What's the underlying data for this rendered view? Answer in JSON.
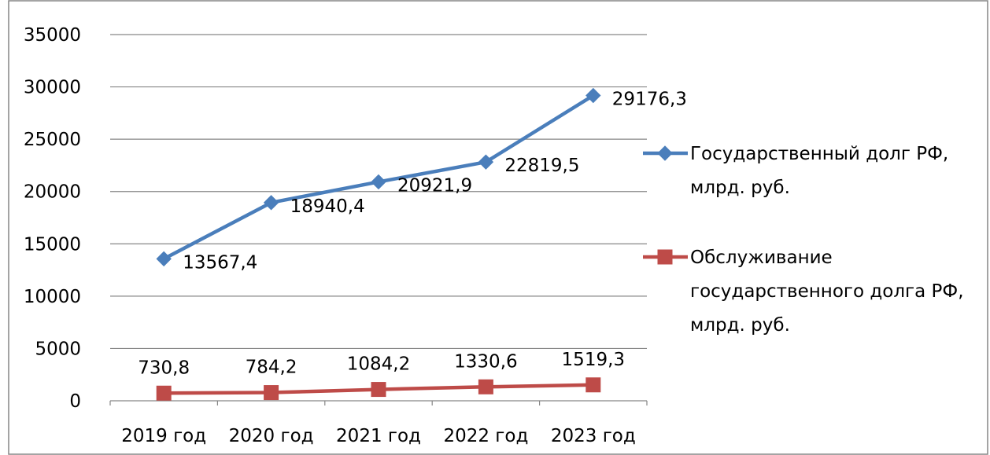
{
  "chart_data": {
    "type": "line",
    "title": "",
    "xlabel": "",
    "ylabel": "",
    "categories": [
      "2019 год",
      "2020 год",
      "2021 год",
      "2022 год",
      "2023 год"
    ],
    "ylim": [
      0,
      35000
    ],
    "yticks": [
      0,
      5000,
      10000,
      15000,
      20000,
      25000,
      30000,
      35000
    ],
    "ytick_labels": [
      "0",
      "5000",
      "10000",
      "15000",
      "20000",
      "25000",
      "30000",
      "35000"
    ],
    "grid": true,
    "legend_position": "right",
    "series": [
      {
        "name": "Государственный долг РФ, млрд. руб.",
        "name_lines": [
          "Государственный долг РФ,",
          "млрд. руб."
        ],
        "marker": "diamond",
        "color": "#4a7ebb",
        "values": [
          13567.4,
          18940.4,
          20921.9,
          22819.5,
          29176.3
        ],
        "labels": [
          "13567,4",
          "18940,4",
          "20921,9",
          "22819,5",
          "29176,3"
        ]
      },
      {
        "name": "Обслуживание государственного долга РФ, млрд. руб.",
        "name_lines": [
          "Обслуживание",
          "государственного долга РФ,",
          "млрд. руб."
        ],
        "marker": "square",
        "color": "#be4b48",
        "values": [
          730.8,
          784.2,
          1084.2,
          1330.6,
          1519.3
        ],
        "labels": [
          "730,8",
          "784,2",
          "1084,2",
          "1330,6",
          "1519,3"
        ]
      }
    ],
    "colors": {
      "frame": "#868686",
      "gridline": "#868686",
      "axis": "#868686"
    }
  }
}
